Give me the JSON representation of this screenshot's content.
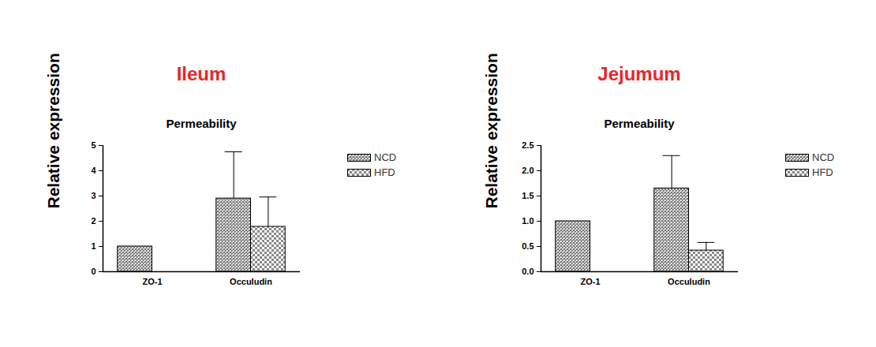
{
  "chart_data": [
    {
      "type": "bar",
      "title": "Ileum",
      "subtitle": "Permeability",
      "y_label": "Relative expression",
      "categories": [
        "ZO-1",
        "Occuludin"
      ],
      "series": [
        {
          "name": "NCD",
          "color": "#707070",
          "values": [
            1.0,
            2.9
          ],
          "errors": [
            null,
            1.85
          ]
        },
        {
          "name": "HFD",
          "color": "#8a8a8a",
          "values": [
            null,
            1.78
          ],
          "errors": [
            null,
            1.18
          ]
        }
      ],
      "ylim": [
        0,
        5
      ],
      "yticks": [
        0,
        1,
        2,
        3,
        4,
        5
      ],
      "legend": "right"
    },
    {
      "type": "bar",
      "title": "Jejumum",
      "subtitle": "Permeability",
      "y_label": "Relative expression",
      "categories": [
        "ZO-1",
        "Occuludin"
      ],
      "series": [
        {
          "name": "NCD",
          "color": "#707070",
          "values": [
            1.0,
            1.65
          ],
          "errors": [
            null,
            0.65
          ]
        },
        {
          "name": "HFD",
          "color": "#8a8a8a",
          "values": [
            null,
            0.42
          ],
          "errors": [
            null,
            0.16
          ]
        }
      ],
      "ylim": [
        0,
        2.5
      ],
      "yticks": [
        {
          "value": 0,
          "label": "0.0"
        },
        0.5,
        {
          "value": 1,
          "label": "1.0"
        },
        1.5,
        {
          "value": 2,
          "label": "2.0"
        },
        2.5
      ],
      "legend": "right"
    }
  ]
}
